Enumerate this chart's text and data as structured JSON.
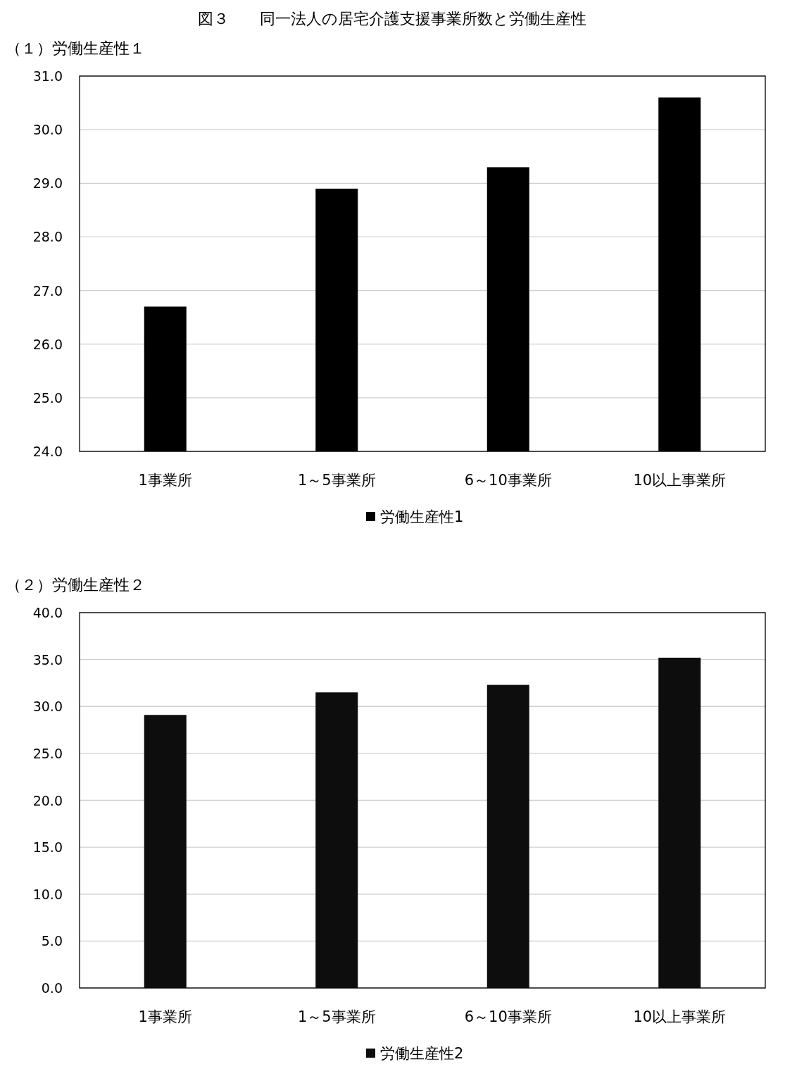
{
  "chart_data": [
    {
      "type": "bar",
      "title": "図３　　同一法人の居宅介護支援事業所数と労働生産性",
      "subtitle": "（１）労働生産性１",
      "categories": [
        "1事業所",
        "1～5事業所",
        "6～10事業所",
        "10以上事業所"
      ],
      "series": [
        {
          "name": "労働生産性1",
          "color": "#000000",
          "values": [
            26.7,
            28.9,
            29.3,
            30.6
          ]
        }
      ],
      "ylim": [
        24,
        31
      ],
      "yticks": [
        {
          "value": 24,
          "label": "24.0"
        },
        {
          "value": 25,
          "label": "25.0"
        },
        {
          "value": 26,
          "label": "26.0"
        },
        {
          "value": 27,
          "label": "27.0"
        },
        {
          "value": 28,
          "label": "28.0"
        },
        {
          "value": 29,
          "label": "29.0"
        },
        {
          "value": 30,
          "label": "30.0"
        },
        {
          "value": 31,
          "label": "31.0"
        }
      ],
      "grid": "y",
      "legend": "bottom"
    },
    {
      "type": "bar",
      "subtitle": "（２）労働生産性２",
      "categories": [
        "1事業所",
        "1～5事業所",
        "6～10事業所",
        "10以上事業所"
      ],
      "series": [
        {
          "name": "労働生産性2",
          "color": "#0d0d0d",
          "values": [
            29.1,
            31.5,
            32.3,
            35.2
          ]
        }
      ],
      "ylim": [
        0,
        40
      ],
      "yticks": [
        {
          "value": 0,
          "label": "0.0"
        },
        {
          "value": 5,
          "label": "5.0"
        },
        {
          "value": 10,
          "label": "10.0"
        },
        {
          "value": 15,
          "label": "15.0"
        },
        {
          "value": 20,
          "label": "20.0"
        },
        {
          "value": 25,
          "label": "25.0"
        },
        {
          "value": 30,
          "label": "30.0"
        },
        {
          "value": 35,
          "label": "35.0"
        },
        {
          "value": 40,
          "label": "40.0"
        }
      ],
      "grid": "y",
      "legend": "bottom"
    }
  ]
}
